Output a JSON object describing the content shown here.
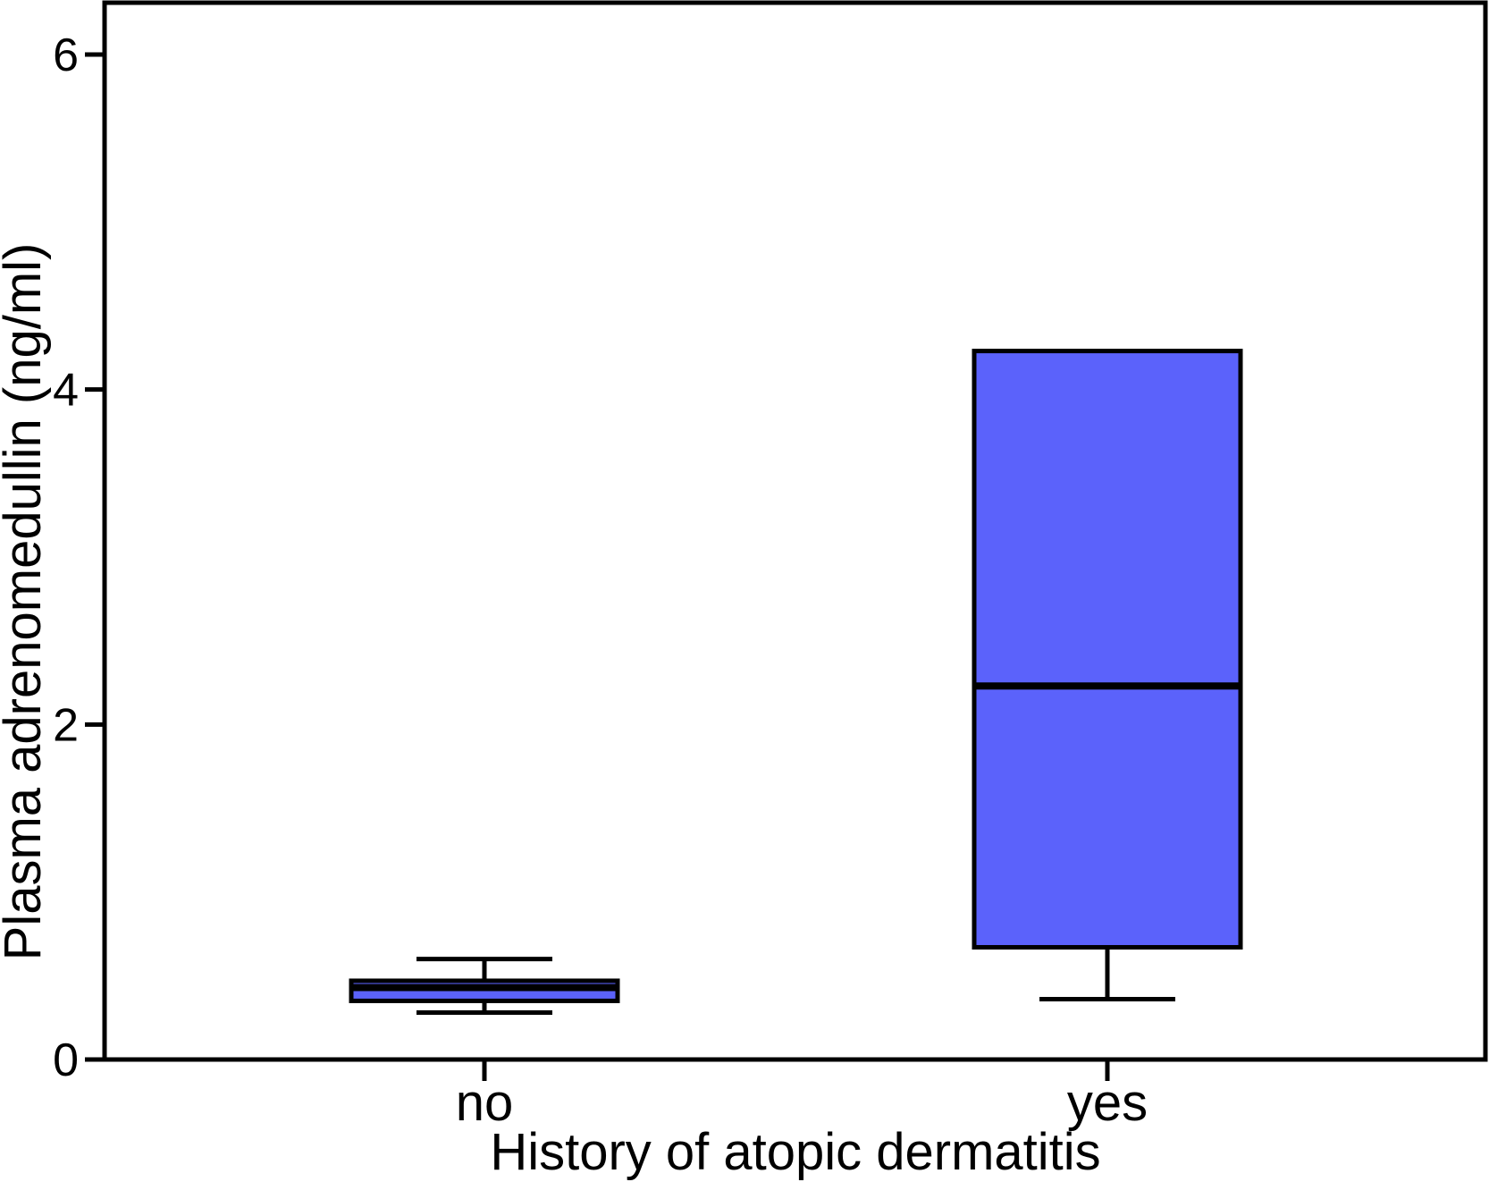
{
  "figure": {
    "background_color": "#ffffff",
    "line_color": "#000000"
  },
  "chart_data": {
    "type": "boxplot",
    "title": "",
    "xlabel": "History of atopic dermatitis",
    "ylabel": "Plasma adrenomedullin (ng/ml)",
    "categories": [
      "no",
      "yes"
    ],
    "y_ticks": [
      0,
      2,
      4,
      6
    ],
    "y_tick_labels": [
      "0",
      "2",
      "4",
      "6"
    ],
    "ylim": [
      0,
      6.31
    ],
    "grid": false,
    "legend": false,
    "box_fill_color": "#5b62fb",
    "box_line_color": "#000000",
    "series": [
      {
        "category": "no",
        "whisker_low": 0.28,
        "q1": 0.35,
        "median": 0.43,
        "q3": 0.47,
        "whisker_high": 0.6
      },
      {
        "category": "yes",
        "whisker_low": 0.36,
        "q1": 0.67,
        "median": 2.23,
        "q3": 4.23,
        "whisker_high": 4.23
      }
    ]
  }
}
